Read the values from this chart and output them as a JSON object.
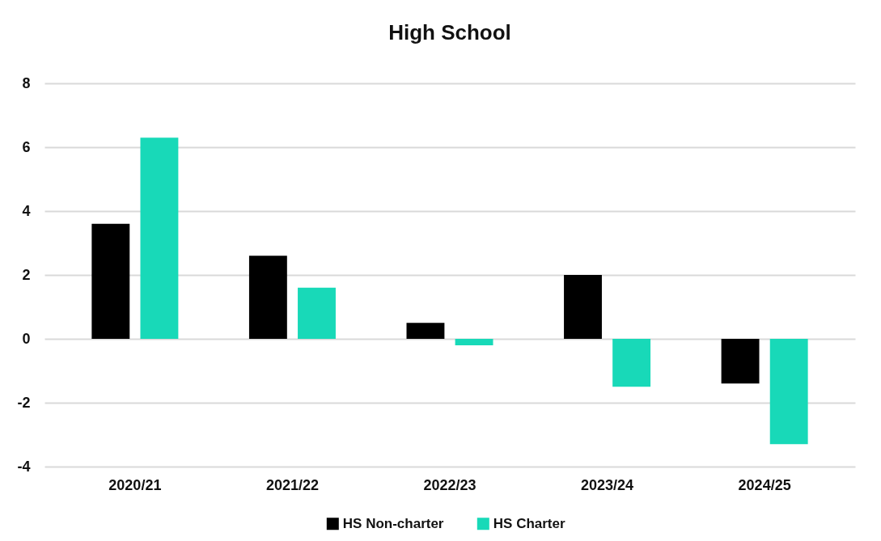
{
  "chart_data": {
    "type": "bar",
    "title": "High School",
    "categories": [
      "2020/21",
      "2021/22",
      "2022/23",
      "2023/24",
      "2024/25"
    ],
    "series": [
      {
        "name": "HS Non-charter",
        "color": "#000000",
        "values": [
          3.6,
          2.6,
          0.5,
          2.0,
          -1.4
        ]
      },
      {
        "name": "HS Charter",
        "color": "#18d9b8",
        "values": [
          6.3,
          1.6,
          -0.2,
          -1.5,
          -3.3
        ]
      }
    ],
    "ylim": [
      -4,
      8
    ],
    "yticks": [
      -4,
      -2,
      0,
      2,
      4,
      6,
      8
    ],
    "grid": "y",
    "legend": "bottom"
  }
}
